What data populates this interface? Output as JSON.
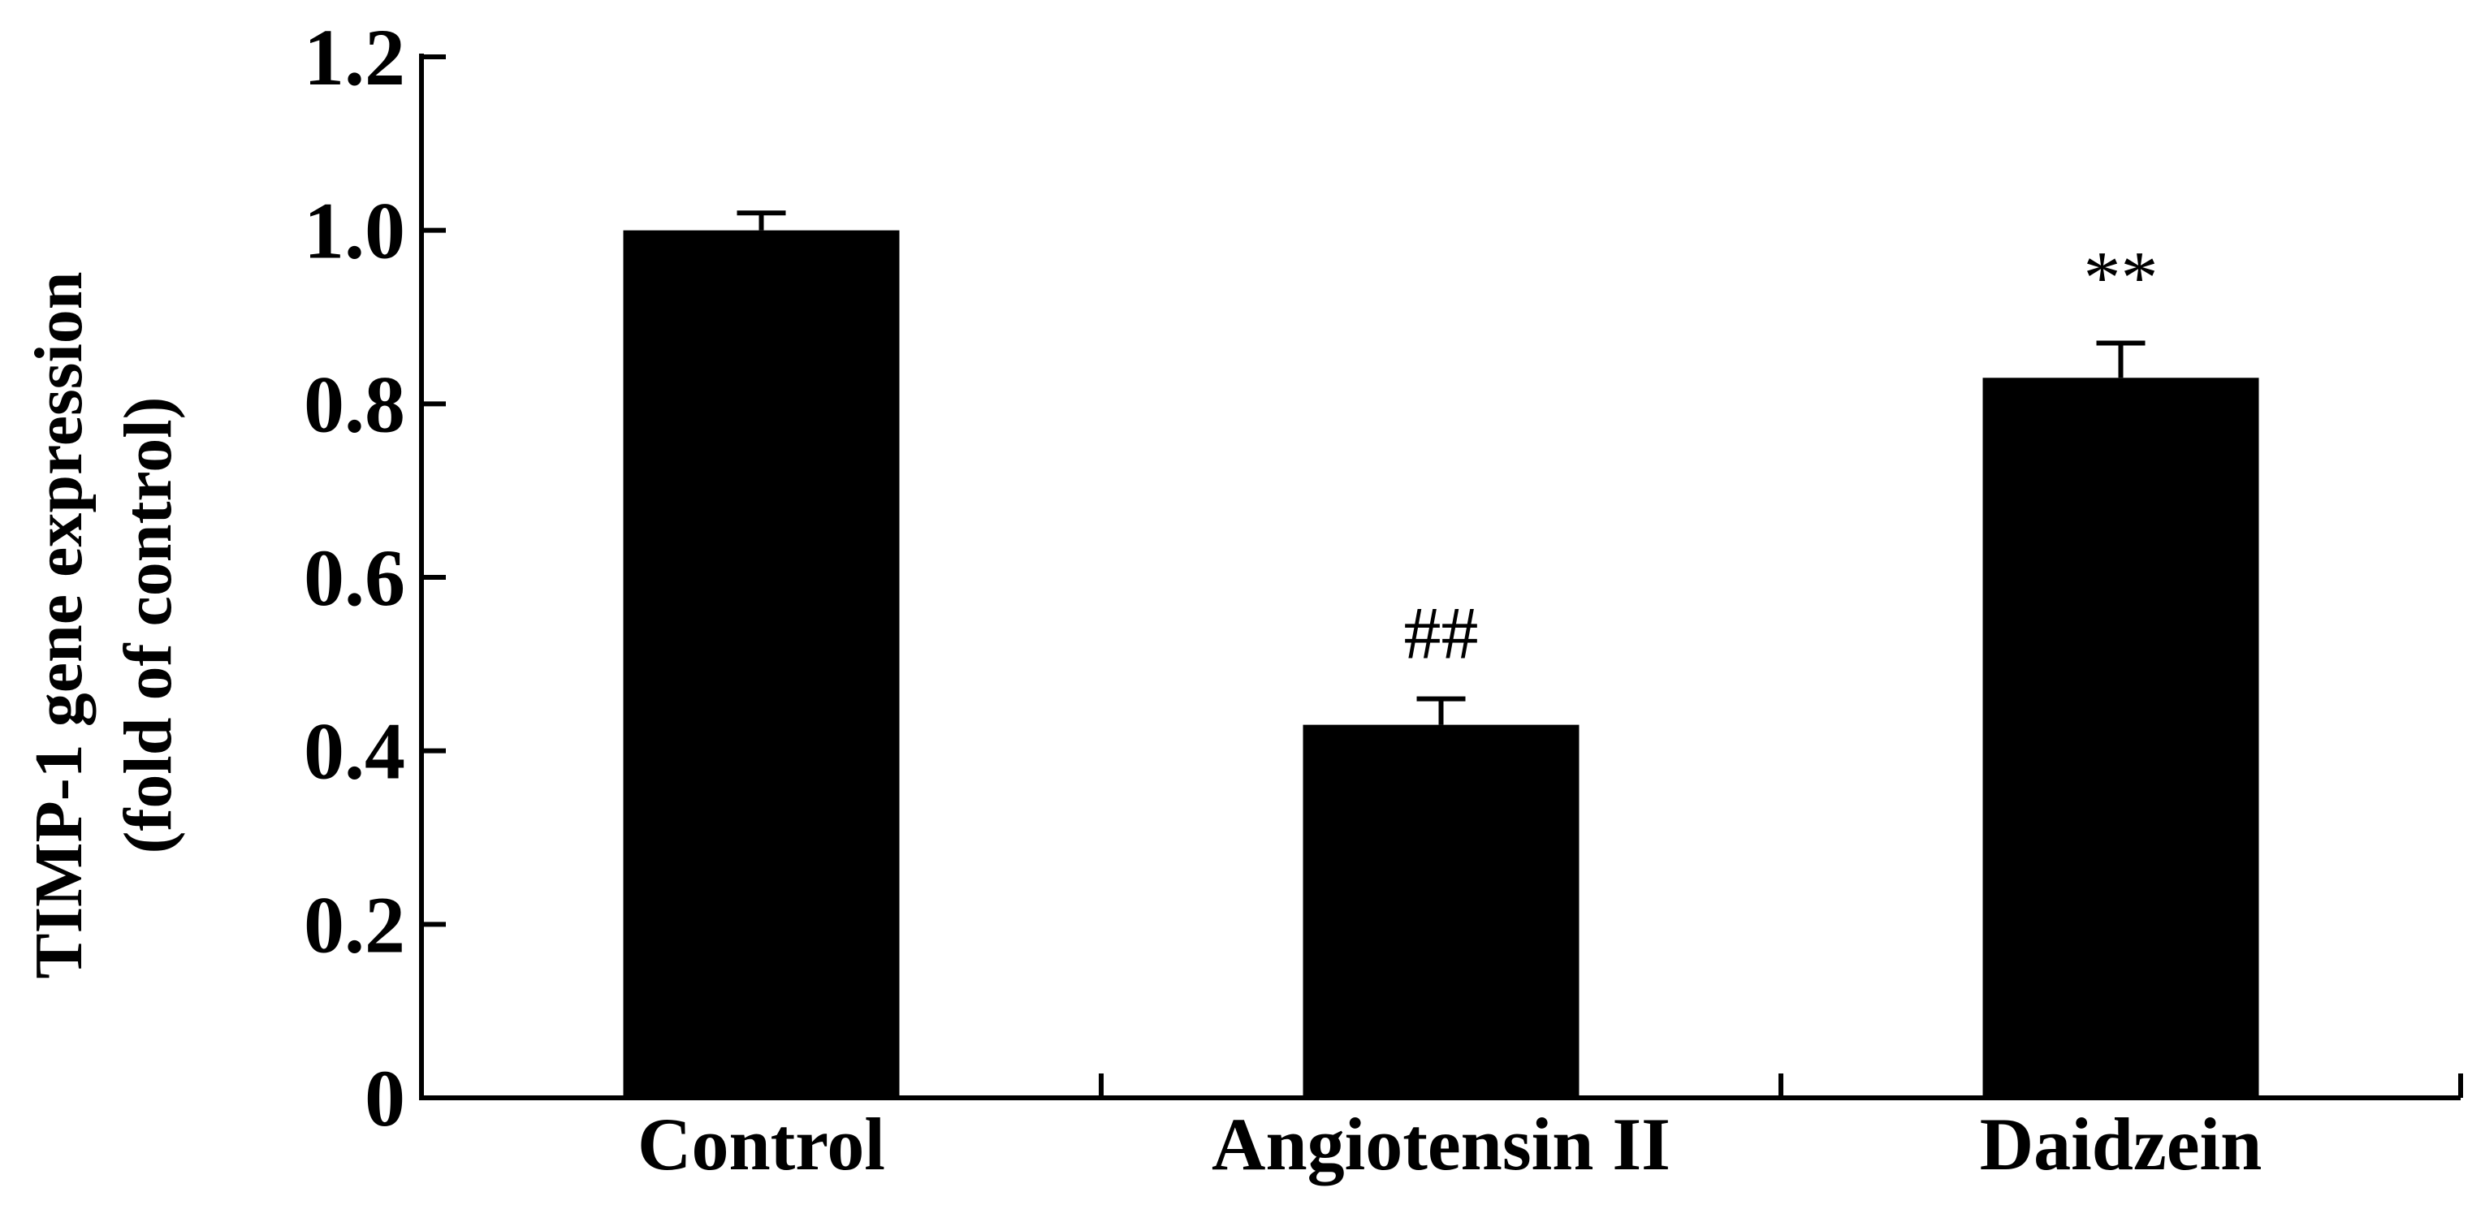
{
  "chart_data": {
    "type": "bar",
    "categories": [
      "Control",
      "Angiotensin II",
      "Daidzein"
    ],
    "values": [
      1.0,
      0.43,
      0.83
    ],
    "errors": [
      0.02,
      0.03,
      0.04
    ],
    "annotations": [
      "",
      "##",
      "**"
    ],
    "ylabel_lines": [
      "TIMP-1 gene expression",
      "(fold of control)"
    ],
    "xlabel": "",
    "title": "",
    "ylim": [
      0,
      1.2
    ],
    "y_ticks": [
      0,
      0.2,
      0.4,
      0.6,
      0.8,
      1.0,
      1.2
    ],
    "y_tick_labels": [
      "0",
      "0.2",
      "0.4",
      "0.6",
      "0.8",
      "1.0",
      "1.2"
    ],
    "bar_color": "#000000",
    "grid": false,
    "legend": "none"
  }
}
